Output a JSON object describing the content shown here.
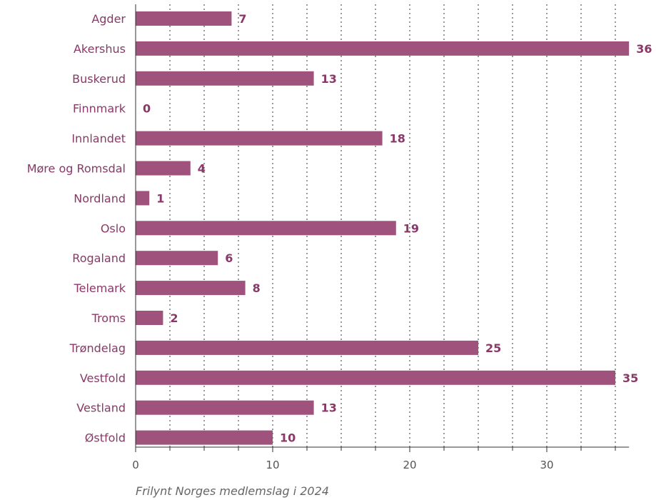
{
  "caption": "Frilynt Norges medlemslag i 2024",
  "colors": {
    "bar": "#9e527c",
    "label": "#8a3868",
    "axis": "#333333",
    "tick": "#555555"
  },
  "chart_data": {
    "type": "bar",
    "orientation": "horizontal",
    "categories": [
      "Agder",
      "Akershus",
      "Buskerud",
      "Finnmark",
      "Innlandet",
      "Møre og Romsdal",
      "Nordland",
      "Oslo",
      "Rogaland",
      "Telemark",
      "Troms",
      "Trøndelag",
      "Vestfold",
      "Vestland",
      "Østfold"
    ],
    "values": [
      7,
      36,
      13,
      0,
      18,
      4,
      1,
      19,
      6,
      8,
      2,
      25,
      35,
      13,
      10
    ],
    "xlim": [
      0,
      36
    ],
    "xticks": [
      0,
      10,
      20,
      30
    ],
    "grid": "vertical dotted",
    "data_labels": true
  }
}
